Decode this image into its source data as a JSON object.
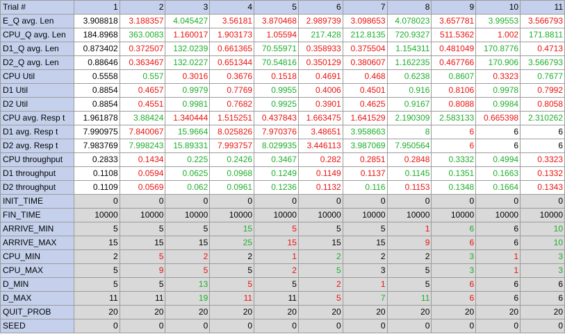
{
  "table": {
    "header_label": "Trial #",
    "trials": [
      "1",
      "2",
      "3",
      "4",
      "5",
      "6",
      "7",
      "8",
      "9",
      "10",
      "11"
    ],
    "colors": {
      "k": "#000000",
      "r": "#e8130f",
      "g": "#1dae2b",
      "label_bg": "#c5d1ec",
      "input_bg": "#d9d9d9",
      "output_bg": "#ffffff"
    },
    "rows": [
      {
        "label": "E_Q avg. Len",
        "kind": "out",
        "values": [
          "3.908818",
          "3.188357",
          "4.045427",
          "3.56181",
          "3.870468",
          "2.989739",
          "3.098653",
          "4.078023",
          "3.657781",
          "3.99553",
          "3.566793"
        ],
        "colors": [
          "k",
          "r",
          "g",
          "r",
          "r",
          "r",
          "r",
          "g",
          "r",
          "g",
          "r"
        ]
      },
      {
        "label": "CPU_Q avg. Len",
        "kind": "out",
        "values": [
          "184.8968",
          "363.0083",
          "1.160017",
          "1.903173",
          "1.05594",
          "217.428",
          "212.8135",
          "720.9327",
          "511.5362",
          "1.002",
          "171.8811"
        ],
        "colors": [
          "k",
          "g",
          "r",
          "r",
          "r",
          "g",
          "g",
          "g",
          "r",
          "r",
          "g"
        ]
      },
      {
        "label": "D1_Q avg. Len",
        "kind": "out",
        "values": [
          "0.873402",
          "0.372507",
          "132.0239",
          "0.661365",
          "70.55971",
          "0.358933",
          "0.375504",
          "1.154311",
          "0.481049",
          "170.8776",
          "0.4713"
        ],
        "colors": [
          "k",
          "r",
          "g",
          "r",
          "g",
          "r",
          "r",
          "g",
          "r",
          "g",
          "r"
        ]
      },
      {
        "label": "D2_Q avg. Len",
        "kind": "out",
        "values": [
          "0.88646",
          "0.363467",
          "132.0227",
          "0.651344",
          "70.54816",
          "0.350129",
          "0.380607",
          "1.162235",
          "0.467766",
          "170.906",
          "3.566793"
        ],
        "colors": [
          "k",
          "r",
          "g",
          "r",
          "g",
          "r",
          "r",
          "g",
          "r",
          "g",
          "g"
        ]
      },
      {
        "label": "CPU Util",
        "kind": "out",
        "values": [
          "0.5558",
          "0.557",
          "0.3016",
          "0.3676",
          "0.1518",
          "0.4691",
          "0.468",
          "0.6238",
          "0.8607",
          "0.3323",
          "0.7677"
        ],
        "colors": [
          "k",
          "g",
          "r",
          "r",
          "r",
          "r",
          "r",
          "g",
          "g",
          "r",
          "g"
        ]
      },
      {
        "label": "D1 Util",
        "kind": "out",
        "values": [
          "0.8854",
          "0.4657",
          "0.9979",
          "0.7769",
          "0.9955",
          "0.4006",
          "0.4501",
          "0.916",
          "0.8106",
          "0.9978",
          "0.7992"
        ],
        "colors": [
          "k",
          "r",
          "g",
          "r",
          "g",
          "r",
          "r",
          "g",
          "r",
          "g",
          "r"
        ]
      },
      {
        "label": "D2 Util",
        "kind": "out",
        "values": [
          "0.8854",
          "0.4551",
          "0.9981",
          "0.7682",
          "0.9925",
          "0.3901",
          "0.4625",
          "0.9167",
          "0.8088",
          "0.9984",
          "0.8058"
        ],
        "colors": [
          "k",
          "r",
          "g",
          "r",
          "g",
          "r",
          "r",
          "g",
          "r",
          "g",
          "r"
        ]
      },
      {
        "label": "CPU avg. Resp t",
        "kind": "out",
        "values": [
          "1.961878",
          "3.88424",
          "1.340444",
          "1.515251",
          "0.437843",
          "1.663475",
          "1.641529",
          "2.190309",
          "2.583133",
          "0.665398",
          "2.310262"
        ],
        "colors": [
          "k",
          "g",
          "r",
          "r",
          "r",
          "r",
          "r",
          "g",
          "g",
          "r",
          "g"
        ]
      },
      {
        "label": "D1 avg. Resp t",
        "kind": "out",
        "values": [
          "7.990975",
          "7.840067",
          "15.9664",
          "8.025826",
          "7.970376",
          "3.48651",
          "3.958663",
          "8",
          "6",
          "6",
          "6"
        ],
        "colors": [
          "k",
          "r",
          "g",
          "r",
          "r",
          "r",
          "g",
          "g",
          "r",
          "k",
          "k"
        ]
      },
      {
        "label": "D2 avg. Resp t",
        "kind": "out",
        "values": [
          "7.983769",
          "7.998243",
          "15.89331",
          "7.993757",
          "8.029935",
          "3.446113",
          "3.987069",
          "7.950564",
          "6",
          "6",
          "6"
        ],
        "colors": [
          "k",
          "g",
          "g",
          "r",
          "g",
          "r",
          "g",
          "g",
          "r",
          "k",
          "k"
        ]
      },
      {
        "label": "CPU throughput",
        "kind": "out",
        "values": [
          "0.2833",
          "0.1434",
          "0.225",
          "0.2426",
          "0.3467",
          "0.282",
          "0.2851",
          "0.2848",
          "0.3332",
          "0.4994",
          "0.3323"
        ],
        "colors": [
          "k",
          "r",
          "g",
          "g",
          "g",
          "r",
          "r",
          "r",
          "g",
          "g",
          "r"
        ]
      },
      {
        "label": "D1 throughput",
        "kind": "out",
        "values": [
          "0.1108",
          "0.0594",
          "0.0625",
          "0.0968",
          "0.1249",
          "0.1149",
          "0.1137",
          "0.1145",
          "0.1351",
          "0.1663",
          "0.1332"
        ],
        "colors": [
          "k",
          "r",
          "g",
          "g",
          "g",
          "r",
          "r",
          "g",
          "g",
          "g",
          "r"
        ]
      },
      {
        "label": "D2 throughput",
        "kind": "out",
        "values": [
          "0.1109",
          "0.0569",
          "0.062",
          "0.0961",
          "0.1236",
          "0.1132",
          "0.116",
          "0.1153",
          "0.1348",
          "0.1664",
          "0.1343"
        ],
        "colors": [
          "k",
          "r",
          "g",
          "g",
          "g",
          "r",
          "g",
          "r",
          "g",
          "g",
          "r"
        ]
      },
      {
        "label": "INIT_TIME",
        "kind": "inp",
        "values": [
          "0",
          "0",
          "0",
          "0",
          "0",
          "0",
          "0",
          "0",
          "0",
          "0",
          "0"
        ],
        "colors": [
          "k",
          "k",
          "k",
          "k",
          "k",
          "k",
          "k",
          "k",
          "k",
          "k",
          "k"
        ]
      },
      {
        "label": "FIN_TIME",
        "kind": "inp",
        "values": [
          "10000",
          "10000",
          "10000",
          "10000",
          "10000",
          "10000",
          "10000",
          "10000",
          "10000",
          "10000",
          "10000"
        ],
        "colors": [
          "k",
          "k",
          "k",
          "k",
          "k",
          "k",
          "k",
          "k",
          "k",
          "k",
          "k"
        ]
      },
      {
        "label": "ARRIVE_MIN",
        "kind": "inp",
        "values": [
          "5",
          "5",
          "5",
          "15",
          "5",
          "5",
          "5",
          "1",
          "6",
          "6",
          "10"
        ],
        "colors": [
          "k",
          "k",
          "k",
          "g",
          "r",
          "k",
          "k",
          "r",
          "g",
          "k",
          "g"
        ]
      },
      {
        "label": "ARRIVE_MAX",
        "kind": "inp",
        "values": [
          "15",
          "15",
          "15",
          "25",
          "15",
          "15",
          "15",
          "9",
          "6",
          "6",
          "10"
        ],
        "colors": [
          "k",
          "k",
          "k",
          "g",
          "r",
          "k",
          "k",
          "r",
          "r",
          "k",
          "g"
        ]
      },
      {
        "label": "CPU_MIN",
        "kind": "inp",
        "values": [
          "2",
          "5",
          "2",
          "2",
          "1",
          "2",
          "2",
          "2",
          "3",
          "1",
          "3"
        ],
        "colors": [
          "k",
          "r",
          "r",
          "k",
          "r",
          "g",
          "k",
          "k",
          "g",
          "r",
          "g"
        ]
      },
      {
        "label": "CPU_MAX",
        "kind": "inp",
        "values": [
          "5",
          "9",
          "5",
          "5",
          "2",
          "5",
          "3",
          "5",
          "3",
          "1",
          "3"
        ],
        "colors": [
          "k",
          "r",
          "r",
          "k",
          "r",
          "g",
          "k",
          "k",
          "g",
          "r",
          "g"
        ]
      },
      {
        "label": "D_MIN",
        "kind": "inp",
        "values": [
          "5",
          "5",
          "13",
          "5",
          "5",
          "2",
          "1",
          "5",
          "6",
          "6",
          "6"
        ],
        "colors": [
          "k",
          "k",
          "g",
          "r",
          "k",
          "r",
          "r",
          "k",
          "r",
          "k",
          "k"
        ]
      },
      {
        "label": "D_MAX",
        "kind": "inp",
        "values": [
          "11",
          "11",
          "19",
          "11",
          "11",
          "5",
          "7",
          "11",
          "6",
          "6",
          "6"
        ],
        "colors": [
          "k",
          "k",
          "g",
          "r",
          "k",
          "r",
          "g",
          "g",
          "r",
          "k",
          "k"
        ]
      },
      {
        "label": "QUIT_PROB",
        "kind": "inp",
        "values": [
          "20",
          "20",
          "20",
          "20",
          "20",
          "20",
          "20",
          "20",
          "20",
          "20",
          "20"
        ],
        "colors": [
          "k",
          "k",
          "k",
          "k",
          "k",
          "k",
          "k",
          "k",
          "k",
          "k",
          "k"
        ]
      },
      {
        "label": "SEED",
        "kind": "inp",
        "values": [
          "0",
          "0",
          "0",
          "0",
          "0",
          "0",
          "0",
          "0",
          "0",
          "0",
          "0"
        ],
        "colors": [
          "k",
          "k",
          "k",
          "k",
          "k",
          "k",
          "k",
          "k",
          "k",
          "k",
          "k"
        ]
      }
    ]
  }
}
